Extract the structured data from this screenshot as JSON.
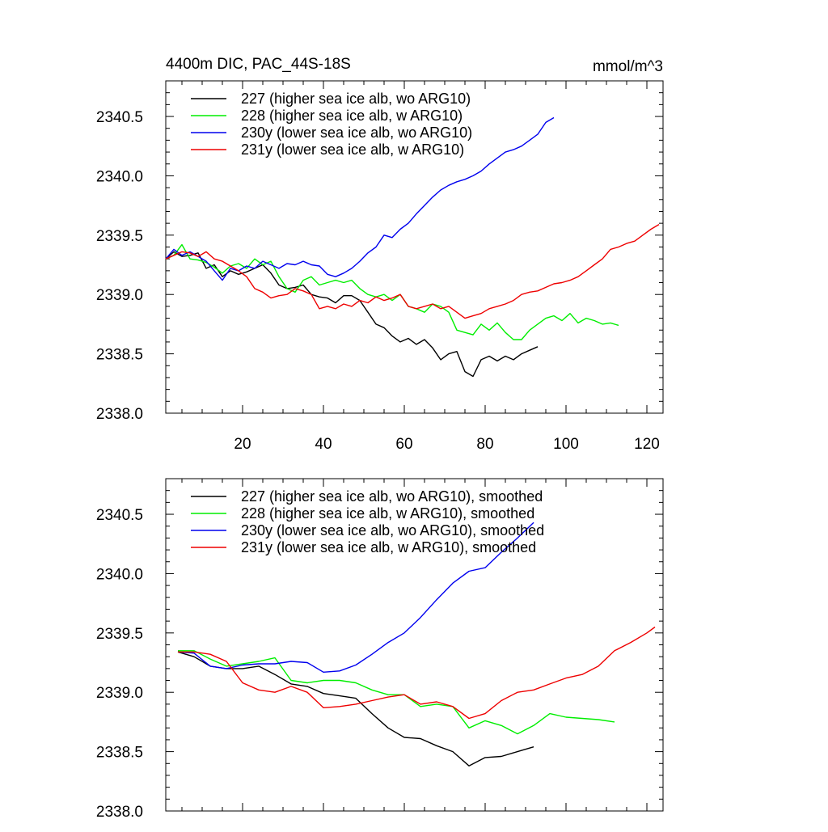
{
  "page": {
    "title_left": "4400m DIC, PAC_44S-18S",
    "title_right": "mmol/m^3"
  },
  "chart_data": [
    {
      "type": "line",
      "panel": "top",
      "xlim": [
        1,
        124
      ],
      "ylim": [
        2338.0,
        2340.8
      ],
      "xticks": [
        20,
        40,
        60,
        80,
        100,
        120
      ],
      "yticks": [
        2338.0,
        2338.5,
        2339.0,
        2339.5,
        2340.0,
        2340.5
      ],
      "ytick_labels": [
        "2338.0",
        "2338.5",
        "2339.0",
        "2339.5",
        "2340.0",
        "2340.5"
      ],
      "xtick_labels_shown": true,
      "legend_placement": "top-left",
      "series": [
        {
          "name": "227 (higher sea ice alb, wo ARG10)",
          "color": "#000000",
          "x": [
            1,
            3,
            5,
            7,
            9,
            11,
            13,
            15,
            17,
            19,
            21,
            23,
            25,
            27,
            29,
            31,
            33,
            35,
            37,
            39,
            41,
            43,
            45,
            47,
            49,
            51,
            53,
            55,
            57,
            59,
            61,
            63,
            65,
            67,
            69,
            71,
            73,
            75,
            77,
            79,
            81,
            83,
            85,
            87,
            89,
            91,
            93
          ],
          "y": [
            2339.3,
            2339.36,
            2339.32,
            2339.33,
            2339.35,
            2339.22,
            2339.25,
            2339.15,
            2339.2,
            2339.17,
            2339.19,
            2339.22,
            2339.25,
            2339.18,
            2339.08,
            2339.05,
            2339.06,
            2339.08,
            2339.0,
            2338.98,
            2338.97,
            2338.93,
            2338.99,
            2338.99,
            2338.95,
            2338.85,
            2338.75,
            2338.72,
            2338.65,
            2338.6,
            2338.63,
            2338.58,
            2338.62,
            2338.55,
            2338.45,
            2338.5,
            2338.52,
            2338.35,
            2338.31,
            2338.45,
            2338.48,
            2338.44,
            2338.48,
            2338.45,
            2338.5,
            2338.53,
            2338.56
          ]
        },
        {
          "name": "228 (higher sea ice alb, w ARG10)",
          "color": "#00ee00",
          "x": [
            1,
            3,
            5,
            7,
            9,
            11,
            13,
            15,
            17,
            19,
            21,
            23,
            25,
            27,
            29,
            31,
            33,
            35,
            37,
            39,
            41,
            43,
            45,
            47,
            49,
            51,
            53,
            55,
            57,
            59,
            61,
            63,
            65,
            67,
            69,
            71,
            73,
            75,
            77,
            79,
            81,
            83,
            85,
            87,
            89,
            91,
            93,
            95,
            97,
            99,
            101,
            103,
            105,
            107,
            109,
            111,
            113
          ],
          "y": [
            2339.3,
            2339.33,
            2339.42,
            2339.3,
            2339.29,
            2339.27,
            2339.23,
            2339.18,
            2339.24,
            2339.26,
            2339.22,
            2339.3,
            2339.25,
            2339.28,
            2339.15,
            2339.05,
            2339.02,
            2339.12,
            2339.15,
            2339.08,
            2339.1,
            2339.12,
            2339.1,
            2339.12,
            2339.05,
            2339.0,
            2338.98,
            2339.0,
            2338.95,
            2339.0,
            2338.9,
            2338.88,
            2338.85,
            2338.92,
            2338.9,
            2338.85,
            2338.7,
            2338.68,
            2338.66,
            2338.75,
            2338.7,
            2338.76,
            2338.68,
            2338.62,
            2338.62,
            2338.7,
            2338.75,
            2338.8,
            2338.82,
            2338.78,
            2338.84,
            2338.76,
            2338.8,
            2338.78,
            2338.75,
            2338.76,
            2338.74
          ]
        },
        {
          "name": "230y (lower sea ice alb, wo ARG10)",
          "color": "#0000ee",
          "x": [
            1,
            3,
            5,
            7,
            9,
            11,
            13,
            15,
            17,
            19,
            21,
            23,
            25,
            27,
            29,
            31,
            33,
            35,
            37,
            39,
            41,
            43,
            45,
            47,
            49,
            51,
            53,
            55,
            57,
            59,
            61,
            63,
            65,
            67,
            69,
            71,
            73,
            75,
            77,
            79,
            81,
            83,
            85,
            87,
            89,
            91,
            93,
            95,
            97
          ],
          "y": [
            2339.3,
            2339.38,
            2339.33,
            2339.36,
            2339.32,
            2339.28,
            2339.2,
            2339.12,
            2339.22,
            2339.2,
            2339.24,
            2339.22,
            2339.28,
            2339.25,
            2339.22,
            2339.26,
            2339.25,
            2339.28,
            2339.25,
            2339.24,
            2339.17,
            2339.15,
            2339.18,
            2339.22,
            2339.28,
            2339.35,
            2339.4,
            2339.5,
            2339.48,
            2339.55,
            2339.6,
            2339.68,
            2339.75,
            2339.82,
            2339.88,
            2339.92,
            2339.95,
            2339.97,
            2340.0,
            2340.04,
            2340.1,
            2340.15,
            2340.2,
            2340.22,
            2340.25,
            2340.3,
            2340.35,
            2340.45,
            2340.49
          ]
        },
        {
          "name": "231y (lower sea ice alb, w ARG10)",
          "color": "#ee0000",
          "x": [
            1,
            3,
            5,
            7,
            9,
            11,
            13,
            15,
            17,
            19,
            21,
            23,
            25,
            27,
            29,
            31,
            33,
            35,
            37,
            39,
            41,
            43,
            45,
            47,
            49,
            51,
            53,
            55,
            57,
            59,
            61,
            63,
            65,
            67,
            69,
            71,
            73,
            75,
            77,
            79,
            81,
            83,
            85,
            87,
            89,
            91,
            93,
            95,
            97,
            99,
            101,
            103,
            105,
            107,
            109,
            111,
            113,
            115,
            117,
            119,
            121,
            123
          ],
          "y": [
            2339.3,
            2339.33,
            2339.36,
            2339.35,
            2339.32,
            2339.36,
            2339.3,
            2339.28,
            2339.24,
            2339.2,
            2339.15,
            2339.05,
            2339.02,
            2338.97,
            2338.99,
            2339.0,
            2339.05,
            2339.03,
            2339.0,
            2338.88,
            2338.9,
            2338.88,
            2338.92,
            2338.9,
            2338.95,
            2338.93,
            2338.98,
            2338.95,
            2338.97,
            2339.0,
            2338.9,
            2338.88,
            2338.9,
            2338.92,
            2338.88,
            2338.9,
            2338.85,
            2338.8,
            2338.82,
            2338.84,
            2338.88,
            2338.9,
            2338.92,
            2338.95,
            2339.0,
            2339.02,
            2339.03,
            2339.06,
            2339.09,
            2339.1,
            2339.12,
            2339.15,
            2339.2,
            2339.25,
            2339.3,
            2339.38,
            2339.4,
            2339.43,
            2339.45,
            2339.5,
            2339.55,
            2339.59
          ]
        }
      ]
    },
    {
      "type": "line",
      "panel": "bottom",
      "xlim": [
        1,
        124
      ],
      "ylim": [
        2338.0,
        2340.8
      ],
      "xticks": [
        20,
        40,
        60,
        80,
        100,
        120
      ],
      "yticks": [
        2338.0,
        2338.5,
        2339.0,
        2339.5,
        2340.0,
        2340.5
      ],
      "ytick_labels": [
        "2338.0",
        "2338.5",
        "2339.0",
        "2339.5",
        "2340.0",
        "2340.5"
      ],
      "xtick_labels_shown": false,
      "legend_placement": "top-left",
      "series": [
        {
          "name": "227 (higher sea ice alb, wo ARG10), smoothed",
          "color": "#000000",
          "x": [
            4,
            8,
            12,
            16,
            20,
            24,
            28,
            32,
            36,
            40,
            44,
            48,
            52,
            56,
            60,
            64,
            68,
            72,
            76,
            80,
            84,
            88,
            92
          ],
          "y": [
            2339.34,
            2339.3,
            2339.22,
            2339.2,
            2339.2,
            2339.22,
            2339.15,
            2339.07,
            2339.05,
            2338.99,
            2338.97,
            2338.95,
            2338.82,
            2338.7,
            2338.62,
            2338.61,
            2338.55,
            2338.5,
            2338.38,
            2338.45,
            2338.46,
            2338.5,
            2338.54
          ]
        },
        {
          "name": "228 (higher sea ice alb, w ARG10), smoothed",
          "color": "#00ee00",
          "x": [
            4,
            8,
            12,
            16,
            20,
            24,
            28,
            32,
            36,
            40,
            44,
            48,
            52,
            56,
            60,
            64,
            68,
            72,
            76,
            80,
            84,
            88,
            92,
            96,
            100,
            104,
            108,
            112
          ],
          "y": [
            2339.35,
            2339.35,
            2339.28,
            2339.22,
            2339.24,
            2339.26,
            2339.29,
            2339.1,
            2339.08,
            2339.1,
            2339.1,
            2339.08,
            2339.02,
            2338.98,
            2338.98,
            2338.88,
            2338.9,
            2338.88,
            2338.7,
            2338.76,
            2338.72,
            2338.65,
            2338.72,
            2338.82,
            2338.79,
            2338.78,
            2338.77,
            2338.75
          ]
        },
        {
          "name": "230y (lower sea ice alb, wo ARG10), smoothed",
          "color": "#0000ee",
          "x": [
            4,
            8,
            12,
            16,
            20,
            24,
            28,
            32,
            36,
            40,
            44,
            48,
            52,
            56,
            60,
            64,
            68,
            72,
            76,
            80,
            84,
            88,
            92
          ],
          "y": [
            2339.34,
            2339.33,
            2339.22,
            2339.2,
            2339.23,
            2339.24,
            2339.24,
            2339.26,
            2339.25,
            2339.17,
            2339.18,
            2339.23,
            2339.32,
            2339.42,
            2339.5,
            2339.63,
            2339.78,
            2339.92,
            2340.02,
            2340.05,
            2340.18,
            2340.3,
            2340.43
          ]
        },
        {
          "name": "231y (lower sea ice alb, w ARG10), smoothed",
          "color": "#ee0000",
          "x": [
            4,
            8,
            12,
            16,
            20,
            24,
            28,
            32,
            36,
            40,
            44,
            48,
            52,
            56,
            60,
            64,
            68,
            72,
            76,
            80,
            84,
            88,
            92,
            96,
            100,
            104,
            108,
            112,
            116,
            120,
            122
          ],
          "y": [
            2339.34,
            2339.34,
            2339.32,
            2339.26,
            2339.08,
            2339.02,
            2339.0,
            2339.05,
            2339.0,
            2338.87,
            2338.88,
            2338.9,
            2338.93,
            2338.96,
            2338.98,
            2338.9,
            2338.92,
            2338.88,
            2338.78,
            2338.82,
            2338.93,
            2339.0,
            2339.02,
            2339.07,
            2339.12,
            2339.15,
            2339.22,
            2339.35,
            2339.42,
            2339.5,
            2339.55
          ]
        }
      ]
    }
  ]
}
